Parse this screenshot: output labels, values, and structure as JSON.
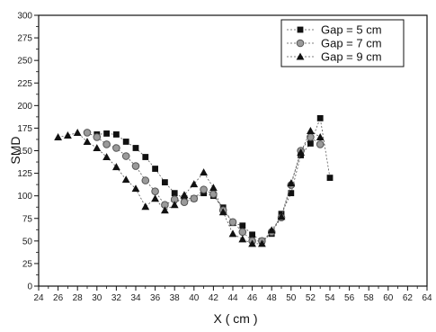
{
  "chart_data": {
    "type": "scatter",
    "xlabel": "X ( cm )",
    "ylabel": "SMD",
    "xlim": [
      24,
      64
    ],
    "ylim": [
      0,
      300
    ],
    "x_ticks": [
      "24",
      "26",
      "28",
      "30",
      "32",
      "34",
      "36",
      "38",
      "40",
      "42",
      "44",
      "46",
      "48",
      "50",
      "52",
      "54",
      "56",
      "58",
      "60",
      "62",
      "64"
    ],
    "y_ticks": [
      "0",
      "25",
      "50",
      "75",
      "100",
      "125",
      "150",
      "175",
      "200",
      "225",
      "250",
      "275",
      "300"
    ],
    "grid": false,
    "legend_position": "top-right",
    "series": [
      {
        "name": "Gap = 5 cm",
        "marker": "square",
        "color": "#111111",
        "x": [
          30,
          31,
          32,
          33,
          34,
          35,
          36,
          37,
          38,
          39,
          40,
          41,
          42,
          43,
          44,
          45,
          46,
          47,
          48,
          49,
          50,
          51,
          52,
          53,
          54
        ],
        "y": [
          168,
          169,
          168,
          160,
          153,
          143,
          130,
          115,
          103,
          97,
          97,
          103,
          100,
          87,
          70,
          67,
          57,
          50,
          58,
          80,
          103,
          145,
          158,
          186,
          120
        ]
      },
      {
        "name": "Gap = 7 cm",
        "marker": "circle",
        "color": "#555555",
        "x": [
          29,
          30,
          31,
          32,
          33,
          34,
          35,
          36,
          37,
          38,
          39,
          40,
          41,
          42,
          43,
          44,
          45,
          46,
          47,
          48,
          49,
          50,
          51,
          52,
          53
        ],
        "y": [
          170,
          165,
          157,
          153,
          144,
          133,
          117,
          105,
          90,
          96,
          93,
          97,
          107,
          102,
          84,
          71,
          60,
          50,
          50,
          60,
          76,
          112,
          150,
          165,
          157
        ]
      },
      {
        "name": "Gap = 9 cm",
        "marker": "triangle",
        "color": "#111111",
        "x": [
          26,
          27,
          28,
          29,
          30,
          31,
          32,
          33,
          34,
          35,
          36,
          37,
          38,
          39,
          40,
          41,
          42,
          43,
          44,
          45,
          46,
          47,
          48,
          49,
          50,
          51,
          52,
          53
        ],
        "y": [
          165,
          167,
          170,
          160,
          153,
          143,
          132,
          118,
          108,
          88,
          97,
          84,
          90,
          101,
          113,
          126,
          109,
          82,
          58,
          52,
          47,
          47,
          62,
          77,
          114,
          148,
          172,
          165
        ]
      }
    ]
  }
}
